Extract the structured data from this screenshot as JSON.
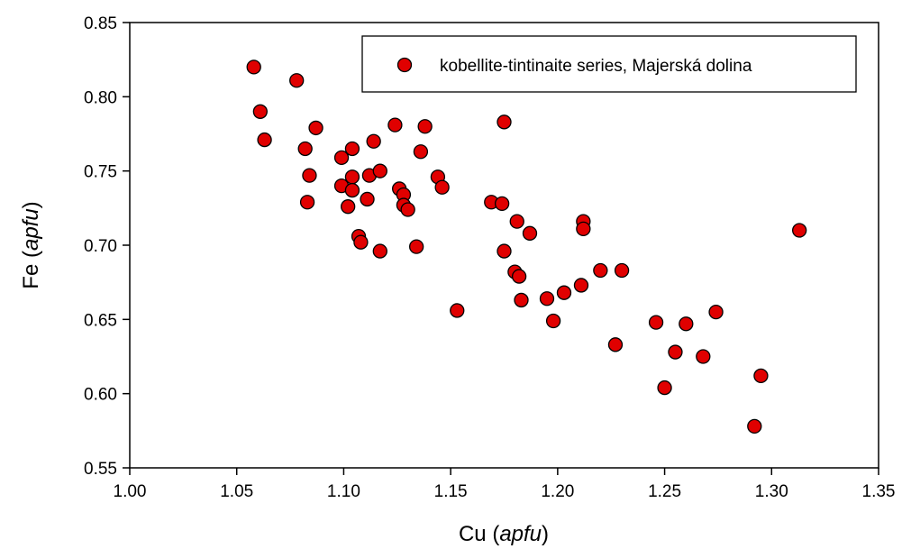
{
  "chart_data": {
    "type": "scatter",
    "xlabel": {
      "prefix": "Cu (",
      "italic": "apfu",
      "suffix": ")"
    },
    "ylabel": {
      "prefix": "Fe (",
      "italic": "apfu",
      "suffix": ")"
    },
    "xlim": [
      1.0,
      1.35
    ],
    "ylim": [
      0.55,
      0.85
    ],
    "x_ticks": [
      "1.00",
      "1.05",
      "1.10",
      "1.15",
      "1.20",
      "1.25",
      "1.30",
      "1.35"
    ],
    "y_ticks": [
      "0.55",
      "0.60",
      "0.65",
      "0.70",
      "0.75",
      "0.80",
      "0.85"
    ],
    "grid": false,
    "legend_position": "top-right",
    "series": [
      {
        "name": "kobellite-tintinaite series, Majerská dolina",
        "marker": "circle",
        "color": "#e00000",
        "edge_color": "#000000",
        "points": [
          [
            1.058,
            0.82
          ],
          [
            1.078,
            0.811
          ],
          [
            1.061,
            0.79
          ],
          [
            1.063,
            0.771
          ],
          [
            1.087,
            0.779
          ],
          [
            1.082,
            0.765
          ],
          [
            1.084,
            0.747
          ],
          [
            1.083,
            0.729
          ],
          [
            1.099,
            0.759
          ],
          [
            1.104,
            0.765
          ],
          [
            1.114,
            0.77
          ],
          [
            1.104,
            0.746
          ],
          [
            1.099,
            0.74
          ],
          [
            1.104,
            0.737
          ],
          [
            1.112,
            0.747
          ],
          [
            1.117,
            0.75
          ],
          [
            1.102,
            0.726
          ],
          [
            1.111,
            0.731
          ],
          [
            1.107,
            0.706
          ],
          [
            1.108,
            0.702
          ],
          [
            1.117,
            0.696
          ],
          [
            1.124,
            0.781
          ],
          [
            1.138,
            0.78
          ],
          [
            1.136,
            0.763
          ],
          [
            1.126,
            0.738
          ],
          [
            1.128,
            0.734
          ],
          [
            1.128,
            0.727
          ],
          [
            1.13,
            0.724
          ],
          [
            1.144,
            0.746
          ],
          [
            1.146,
            0.739
          ],
          [
            1.134,
            0.699
          ],
          [
            1.153,
            0.656
          ],
          [
            1.175,
            0.783
          ],
          [
            1.169,
            0.729
          ],
          [
            1.174,
            0.728
          ],
          [
            1.181,
            0.716
          ],
          [
            1.175,
            0.696
          ],
          [
            1.187,
            0.708
          ],
          [
            1.18,
            0.682
          ],
          [
            1.182,
            0.679
          ],
          [
            1.183,
            0.663
          ],
          [
            1.195,
            0.664
          ],
          [
            1.198,
            0.649
          ],
          [
            1.203,
            0.668
          ],
          [
            1.212,
            0.716
          ],
          [
            1.212,
            0.711
          ],
          [
            1.211,
            0.673
          ],
          [
            1.22,
            0.683
          ],
          [
            1.23,
            0.683
          ],
          [
            1.227,
            0.633
          ],
          [
            1.246,
            0.648
          ],
          [
            1.25,
            0.604
          ],
          [
            1.255,
            0.628
          ],
          [
            1.26,
            0.647
          ],
          [
            1.268,
            0.625
          ],
          [
            1.274,
            0.655
          ],
          [
            1.292,
            0.578
          ],
          [
            1.295,
            0.612
          ],
          [
            1.313,
            0.71
          ]
        ]
      }
    ]
  }
}
